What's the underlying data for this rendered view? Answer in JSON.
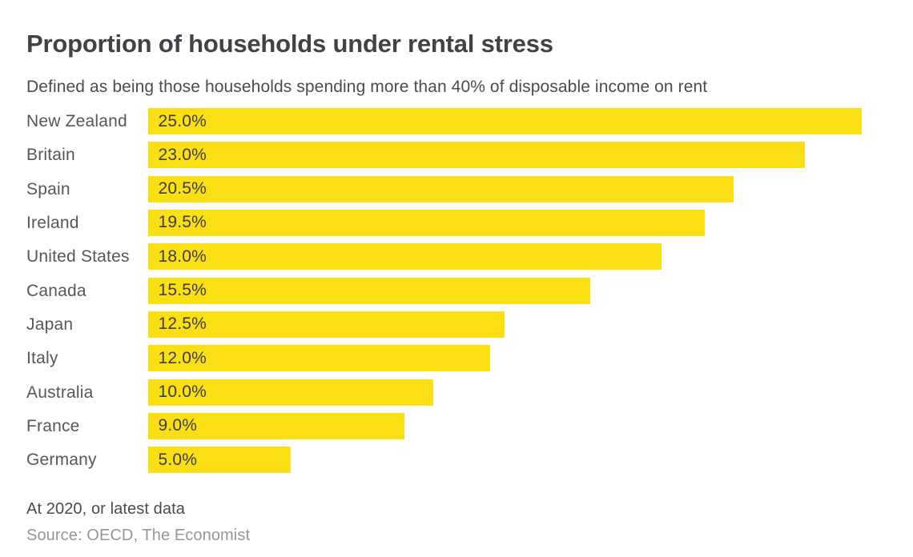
{
  "chart_data": {
    "type": "bar",
    "orientation": "horizontal",
    "title": "Proportion of households under rental stress",
    "subtitle": "Defined as being those households spending more than 40% of disposable income on rent",
    "categories": [
      "New Zealand",
      "Britain",
      "Spain",
      "Ireland",
      "United States",
      "Canada",
      "Japan",
      "Italy",
      "Australia",
      "France",
      "Germany"
    ],
    "values": [
      25.0,
      23.0,
      20.5,
      19.5,
      18.0,
      15.5,
      12.5,
      12.0,
      10.0,
      9.0,
      5.0
    ],
    "value_labels": [
      "25.0%",
      "23.0%",
      "20.5%",
      "19.5%",
      "18.0%",
      "15.5%",
      "12.5%",
      "12.0%",
      "10.0%",
      "9.0%",
      "5.0%"
    ],
    "xlim": [
      0,
      25
    ],
    "grid": false,
    "legend": "none",
    "value_label_position": "inside-start",
    "bar_color": "#FBDF15"
  },
  "footer": {
    "note": "At 2020, or latest data",
    "source": "Source: OECD, The Economist"
  },
  "colors": {
    "background": "#FFFFFF",
    "bar": "#FBDF15",
    "title_text": "#414245",
    "subtitle_text": "#4B4C4E",
    "category_text": "#56575A",
    "value_text": "#3E3E40",
    "note_text": "#4A4B4D",
    "source_text": "#95969A"
  }
}
